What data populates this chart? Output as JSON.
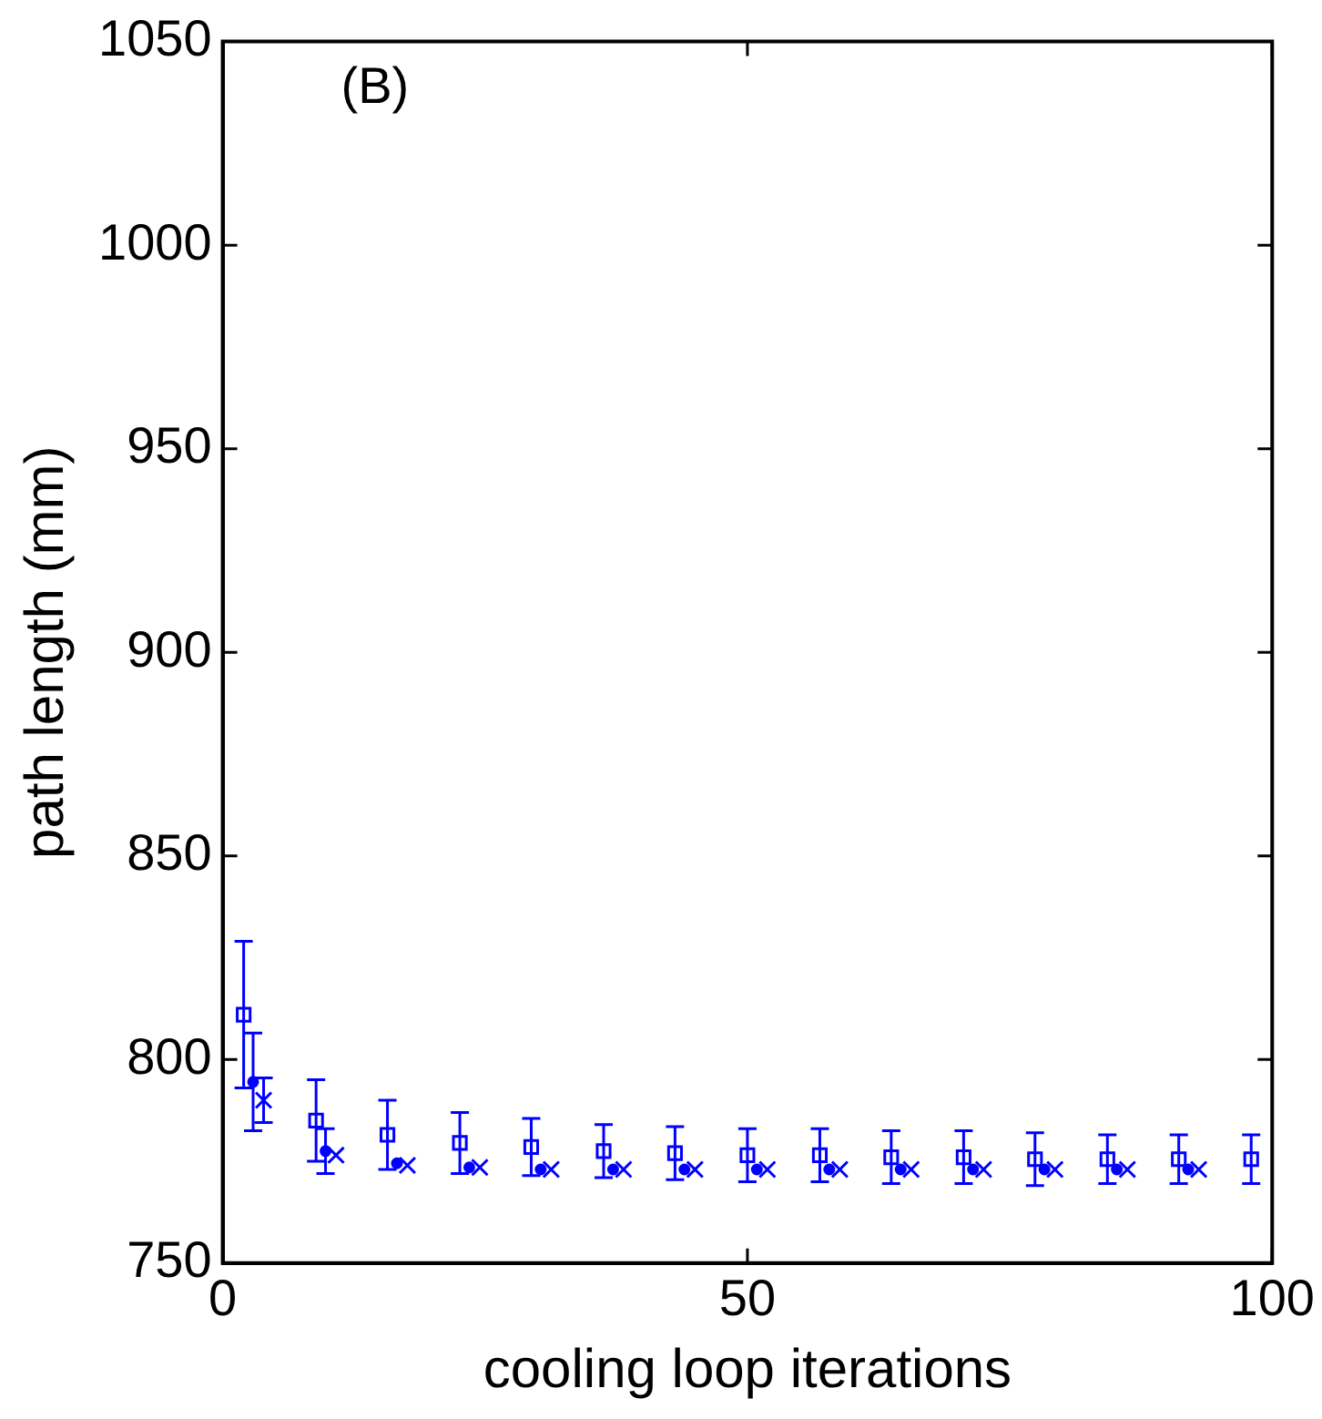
{
  "chart_data": {
    "type": "scatter",
    "xlabel": "cooling loop iterations",
    "ylabel": "path length (mm)",
    "annotations": [
      "(B)"
    ],
    "xlim": [
      0,
      100
    ],
    "xticks": [
      0,
      50,
      100
    ],
    "ylim": [
      750,
      1050
    ],
    "yticks": [
      750,
      800,
      850,
      900,
      950,
      1000,
      1050
    ],
    "grid": false,
    "legend": false,
    "series": [
      {
        "color": "#0000ff",
        "marker": "square",
        "x": [
          2,
          8.9,
          15.7,
          22.6,
          29.4,
          36.3,
          43.1,
          50,
          56.9,
          63.7,
          70.6,
          77.4,
          84.3,
          91.1,
          98
        ],
        "values": [
          811,
          785,
          781.5,
          779.5,
          778.5,
          777.5,
          777,
          776.5,
          776.5,
          776,
          776,
          775.5,
          775.5,
          775.5,
          775.5
        ],
        "errors": [
          18,
          10,
          8.5,
          7.5,
          7,
          6.5,
          6.5,
          6.5,
          6.5,
          6.5,
          6.5,
          6.5,
          6,
          6,
          6
        ]
      },
      {
        "color": "#0000ff",
        "marker": "circle",
        "x": [
          2.9,
          9.8,
          16.6,
          23.5,
          30.3,
          37.2,
          44,
          50.9,
          57.8,
          64.6,
          71.5,
          78.3,
          85.2,
          92
        ],
        "values": [
          794.5,
          777.5,
          774.5,
          773.5,
          773,
          773,
          773,
          773,
          773,
          773,
          773,
          773,
          773,
          773
        ],
        "errors": [
          12,
          5.5,
          null,
          null,
          null,
          null,
          null,
          null,
          null,
          null,
          null,
          null,
          null,
          null
        ]
      },
      {
        "color": "#0000ff",
        "marker": "cross",
        "x": [
          3.9,
          10.8,
          17.6,
          24.5,
          31.3,
          38.2,
          45,
          51.9,
          58.8,
          65.6,
          72.5,
          79.3,
          86.2,
          93
        ],
        "values": [
          790,
          776.5,
          774,
          773.5,
          773,
          773,
          773,
          773,
          773,
          773,
          773,
          773,
          773,
          773
        ],
        "errors": [
          5.5,
          null,
          null,
          null,
          null,
          null,
          null,
          null,
          null,
          null,
          null,
          null,
          null,
          null
        ]
      }
    ]
  }
}
